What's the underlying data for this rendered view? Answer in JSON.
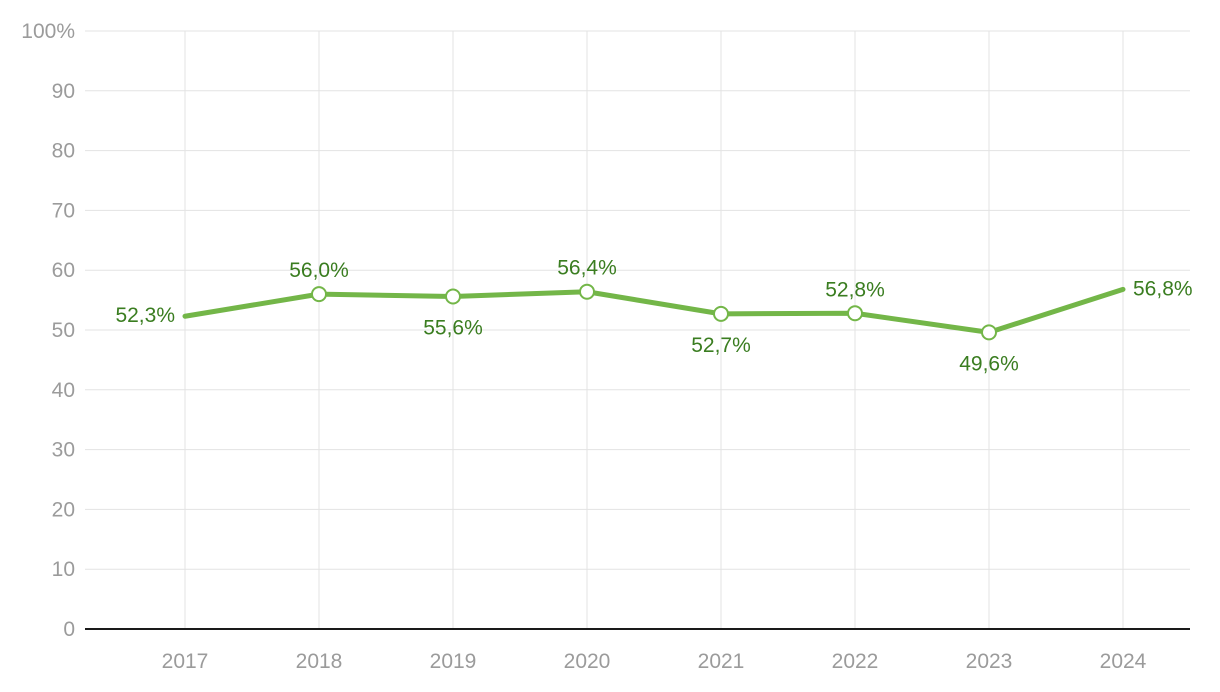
{
  "chart": {
    "line_color": "#73b648",
    "marker_fill": "#ffffff",
    "label_color": "#3a7d20",
    "axis_text_color": "#9b9b9b",
    "grid_color": "#e3e3e3",
    "axis_line_color": "#1a1a1a"
  },
  "chart_data": {
    "type": "line",
    "categories": [
      "2017",
      "2018",
      "2019",
      "2020",
      "2021",
      "2022",
      "2023",
      "2024"
    ],
    "values": [
      52.3,
      56.0,
      55.6,
      56.4,
      52.7,
      52.8,
      49.6,
      56.8
    ],
    "point_labels": [
      "52,3%",
      "56,0%",
      "55,6%",
      "56,4%",
      "52,7%",
      "52,8%",
      "49,6%",
      "56,8%"
    ],
    "label_positions": [
      "left",
      "above",
      "below",
      "above",
      "below",
      "above",
      "below",
      "right"
    ],
    "markers": [
      false,
      true,
      true,
      true,
      true,
      true,
      true,
      false
    ],
    "title": "",
    "xlabel": "",
    "ylabel": "",
    "ylim": [
      0,
      100
    ],
    "yticks": [
      0,
      10,
      20,
      30,
      40,
      50,
      60,
      70,
      80,
      90,
      100
    ],
    "ytick_labels": [
      "0",
      "10",
      "20",
      "30",
      "40",
      "50",
      "60",
      "70",
      "80",
      "90",
      "100%"
    ],
    "grid": true,
    "legend": "none"
  }
}
